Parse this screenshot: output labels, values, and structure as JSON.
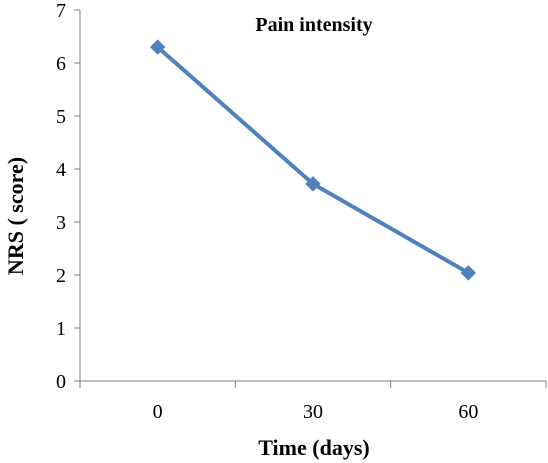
{
  "chart_data": {
    "type": "line",
    "title": "Pain intensity",
    "xlabel": "Time (days)",
    "ylabel": "NRS ( score)",
    "categories": [
      "0",
      "30",
      "60"
    ],
    "series": [
      {
        "values": [
          6.3,
          3.72,
          2.04
        ]
      }
    ],
    "ylim": [
      0,
      7
    ],
    "yticks": [
      "0",
      "1",
      "2",
      "3",
      "4",
      "5",
      "6",
      "7"
    ],
    "grid": false,
    "legend": "none",
    "colors": {
      "series": "#4F81BD",
      "axis": "#808080"
    }
  }
}
